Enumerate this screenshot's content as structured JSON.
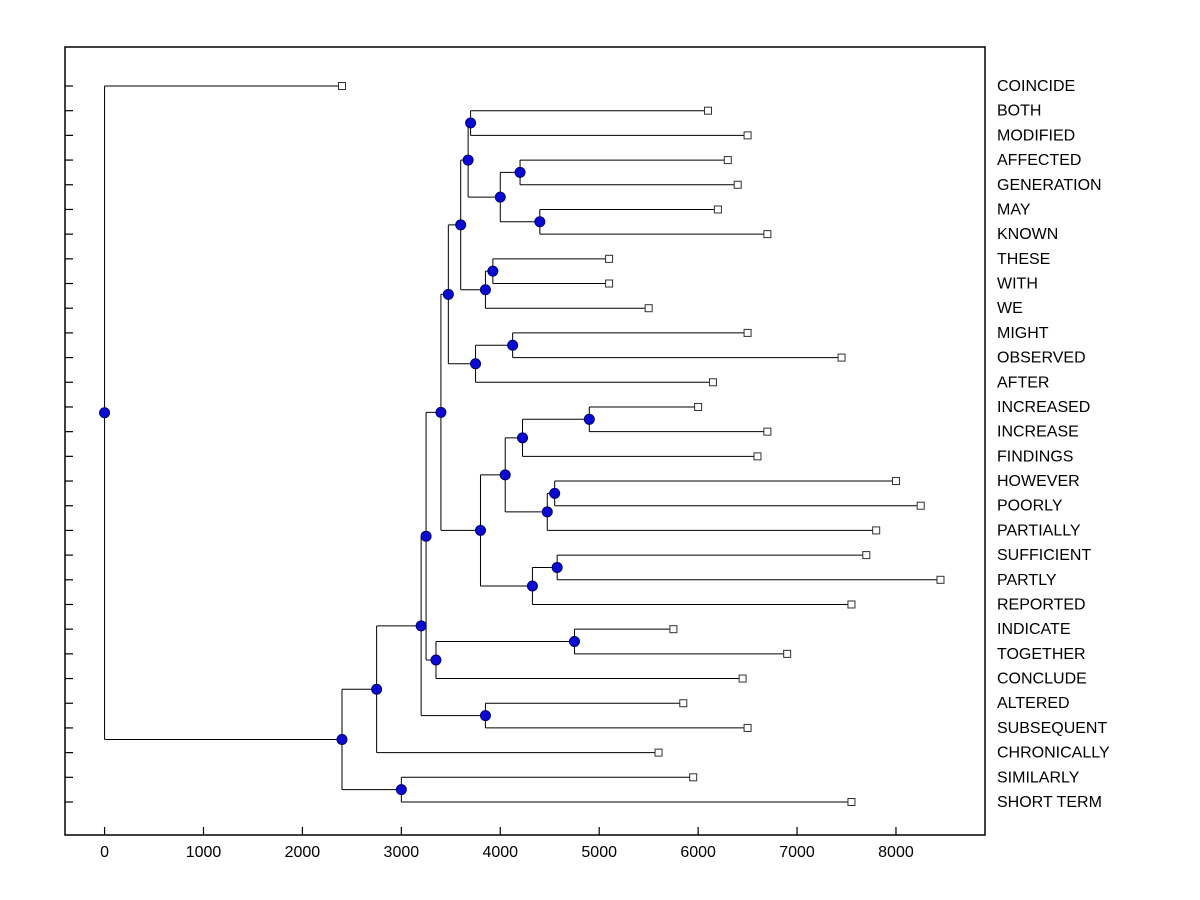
{
  "chart_data": {
    "type": "dendrogram",
    "orientation": "root-left-leaves-right",
    "title": "",
    "xlabel": "",
    "ylabel": "",
    "xlim": [
      -400,
      8900
    ],
    "x_ticks": [
      0,
      1000,
      2000,
      3000,
      4000,
      5000,
      6000,
      7000,
      8000
    ],
    "grid": false,
    "legend": "none",
    "leaf_labels": [
      "COINCIDE",
      "BOTH",
      "MODIFIED",
      "AFFECTED",
      "GENERATION",
      "MAY",
      "KNOWN",
      "THESE",
      "WITH",
      "WE",
      "MIGHT",
      "OBSERVED",
      "AFTER",
      "INCREASED",
      "INCREASE",
      "FINDINGS",
      "HOWEVER",
      "POORLY",
      "PARTIALLY",
      "SUFFICIENT",
      "PARTLY",
      "REPORTED",
      "INDICATE",
      "TOGETHER",
      "CONCLUDE",
      "ALTERED",
      "SUBSEQUENT",
      "CHRONICALLY",
      "SIMILARLY",
      "SHORT TERM"
    ],
    "colors": {
      "line": "#000000",
      "node_fill": "#0A0AD2",
      "node_edge": "#000070",
      "leaf_fill": "#FFFFFF",
      "leaf_edge": "#303030",
      "axis": "#000000",
      "text": "#000000"
    },
    "tree": {
      "d": 0,
      "c": [
        {
          "label": "COINCIDE",
          "d": 2400
        },
        {
          "d": 2400,
          "c": [
            {
              "d": 2750,
              "c": [
                {
                  "d": 3200,
                  "c": [
                    {
                      "d": 3250,
                      "c": [
                        {
                          "d": 3400,
                          "c": [
                            {
                              "d": 3475,
                              "c": [
                                {
                                  "d": 3600,
                                  "c": [
                                    {
                                      "d": 3675,
                                      "c": [
                                        {
                                          "d": 3700,
                                          "c": [
                                            {
                                              "label": "BOTH",
                                              "d": 6100
                                            },
                                            {
                                              "label": "MODIFIED",
                                              "d": 6500
                                            }
                                          ]
                                        },
                                        {
                                          "d": 4000,
                                          "c": [
                                            {
                                              "d": 4200,
                                              "c": [
                                                {
                                                  "label": "AFFECTED",
                                                  "d": 6300
                                                },
                                                {
                                                  "label": "GENERATION",
                                                  "d": 6400
                                                }
                                              ]
                                            },
                                            {
                                              "d": 4400,
                                              "c": [
                                                {
                                                  "label": "MAY",
                                                  "d": 6200
                                                },
                                                {
                                                  "label": "KNOWN",
                                                  "d": 6700
                                                }
                                              ]
                                            }
                                          ]
                                        }
                                      ]
                                    },
                                    {
                                      "d": 3850,
                                      "c": [
                                        {
                                          "d": 3925,
                                          "c": [
                                            {
                                              "label": "THESE",
                                              "d": 5100
                                            },
                                            {
                                              "label": "WITH",
                                              "d": 5100
                                            }
                                          ]
                                        },
                                        {
                                          "label": "WE",
                                          "d": 5500
                                        }
                                      ]
                                    }
                                  ]
                                },
                                {
                                  "d": 3750,
                                  "c": [
                                    {
                                      "d": 4125,
                                      "c": [
                                        {
                                          "label": "MIGHT",
                                          "d": 6500
                                        },
                                        {
                                          "label": "OBSERVED",
                                          "d": 7450
                                        }
                                      ]
                                    },
                                    {
                                      "label": "AFTER",
                                      "d": 6150
                                    }
                                  ]
                                }
                              ]
                            },
                            {
                              "d": 3800,
                              "c": [
                                {
                                  "d": 4050,
                                  "c": [
                                    {
                                      "d": 4225,
                                      "c": [
                                        {
                                          "d": 4900,
                                          "c": [
                                            {
                                              "label": "INCREASED",
                                              "d": 6000
                                            },
                                            {
                                              "label": "INCREASE",
                                              "d": 6700
                                            }
                                          ]
                                        },
                                        {
                                          "label": "FINDINGS",
                                          "d": 6600
                                        }
                                      ]
                                    },
                                    {
                                      "d": 4475,
                                      "c": [
                                        {
                                          "d": 4550,
                                          "c": [
                                            {
                                              "label": "HOWEVER",
                                              "d": 8000
                                            },
                                            {
                                              "label": "POORLY",
                                              "d": 8250
                                            }
                                          ]
                                        },
                                        {
                                          "label": "PARTIALLY",
                                          "d": 7800
                                        }
                                      ]
                                    }
                                  ]
                                },
                                {
                                  "d": 4325,
                                  "c": [
                                    {
                                      "d": 4575,
                                      "c": [
                                        {
                                          "label": "SUFFICIENT",
                                          "d": 7700
                                        },
                                        {
                                          "label": "PARTLY",
                                          "d": 8450
                                        }
                                      ]
                                    },
                                    {
                                      "label": "REPORTED",
                                      "d": 7550
                                    }
                                  ]
                                }
                              ]
                            }
                          ]
                        },
                        {
                          "d": 3350,
                          "c": [
                            {
                              "d": 4750,
                              "c": [
                                {
                                  "label": "INDICATE",
                                  "d": 5750
                                },
                                {
                                  "label": "TOGETHER",
                                  "d": 6900
                                }
                              ]
                            },
                            {
                              "label": "CONCLUDE",
                              "d": 6450
                            }
                          ]
                        }
                      ]
                    },
                    {
                      "d": 3850,
                      "c": [
                        {
                          "label": "ALTERED",
                          "d": 5850
                        },
                        {
                          "label": "SUBSEQUENT",
                          "d": 6500
                        }
                      ]
                    }
                  ]
                },
                {
                  "label": "CHRONICALLY",
                  "d": 5600
                }
              ]
            },
            {
              "d": 3000,
              "c": [
                {
                  "label": "SIMILARLY",
                  "d": 5950
                },
                {
                  "label": "SHORT TERM",
                  "d": 7550
                }
              ]
            }
          ]
        }
      ]
    }
  }
}
